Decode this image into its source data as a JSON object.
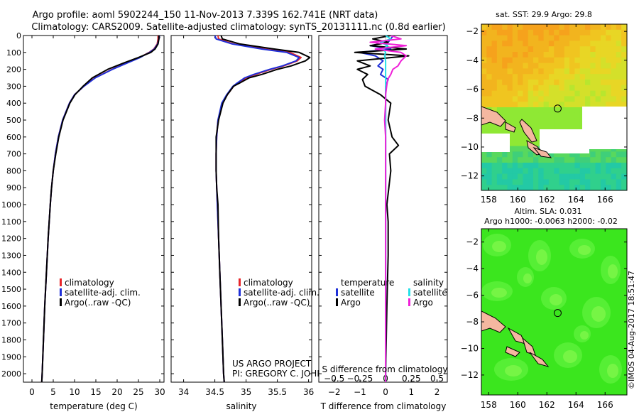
{
  "figure": {
    "title_line1": "Argo profile: aoml 5902244_150 11-Nov-2013 7.339S 162.741E (NRT data)",
    "title_line2": "Climatology: CARS2009. Satellite-adjusted climatology: synTS_20131111.nc (0.8d earlier)",
    "project_line1": "US ARGO PROJECT",
    "project_line2": "PI: GREGORY C. JOHNSON",
    "credit": "©IMOS 04-Aug-2017 18:51:47"
  },
  "colors": {
    "climatology": "#e8262a",
    "satellite": "#1f30d8",
    "argo": "#000000",
    "salinity_satellite": "#26e0e8",
    "salinity_argo": "#f020d8"
  },
  "chart_data": [
    {
      "id": "temperature",
      "type": "line",
      "xlabel": "temperature (deg C)",
      "xticks": [
        "0",
        "5",
        "10",
        "15",
        "20",
        "25",
        "30"
      ],
      "xlim": [
        -2,
        31
      ],
      "ylim": [
        0,
        2050
      ],
      "yticks": [
        "0",
        "100",
        "200",
        "300",
        "400",
        "500",
        "600",
        "700",
        "800",
        "900",
        "1000",
        "1100",
        "1200",
        "1300",
        "1400",
        "1500",
        "1600",
        "1700",
        "1800",
        "1900",
        "2000"
      ],
      "legend": [
        "climatology",
        "satellite-adj. clim.",
        "Argo(..raw -QC)"
      ],
      "depth": [
        0,
        20,
        50,
        80,
        100,
        130,
        160,
        200,
        250,
        300,
        350,
        400,
        500,
        600,
        700,
        800,
        900,
        1000,
        1200,
        1400,
        1600,
        1800,
        2000,
        2050
      ],
      "series": [
        {
          "name": "climatology",
          "values": [
            29.6,
            29.6,
            29.4,
            28.6,
            27.5,
            25.3,
            22.5,
            18.8,
            14.8,
            12.2,
            10.0,
            8.8,
            7.2,
            6.2,
            5.5,
            5.0,
            4.6,
            4.3,
            3.8,
            3.4,
            3.0,
            2.7,
            2.4,
            2.3
          ]
        },
        {
          "name": "satellite-adj. clim.",
          "values": [
            29.9,
            29.8,
            29.5,
            28.7,
            27.6,
            25.4,
            22.6,
            18.9,
            14.9,
            12.2,
            10.0,
            8.8,
            7.2,
            6.2,
            5.5,
            5.0,
            4.6,
            4.3,
            3.8,
            3.4,
            3.0,
            2.7,
            2.4,
            2.3
          ]
        },
        {
          "name": "Argo(..raw -QC)",
          "values": [
            29.8,
            29.8,
            29.6,
            28.9,
            27.9,
            25.0,
            21.8,
            17.8,
            14.2,
            12.0,
            10.1,
            8.9,
            7.3,
            6.3,
            5.6,
            5.0,
            4.6,
            4.3,
            3.8,
            3.4,
            3.0,
            2.7,
            2.4,
            2.3
          ]
        }
      ]
    },
    {
      "id": "salinity",
      "type": "line",
      "xlabel": "salinity",
      "xticks": [
        "34",
        "34.5",
        "35",
        "35.5",
        "36"
      ],
      "xlim": [
        33.8,
        36.05
      ],
      "ylim": [
        0,
        2050
      ],
      "legend": [
        "climatology",
        "satellite-adj. clim.",
        "Argo(..raw -QC)"
      ],
      "depth": [
        0,
        20,
        50,
        80,
        100,
        130,
        150,
        180,
        200,
        230,
        250,
        280,
        300,
        330,
        350,
        400,
        500,
        600,
        700,
        800,
        900,
        1000,
        1200,
        1400,
        1600,
        1800,
        2000,
        2050
      ],
      "series": [
        {
          "name": "climatology",
          "values": [
            34.55,
            34.56,
            34.8,
            35.3,
            35.7,
            35.88,
            35.82,
            35.6,
            35.4,
            35.15,
            35.0,
            34.88,
            34.8,
            34.74,
            34.7,
            34.62,
            34.55,
            34.53,
            34.52,
            34.52,
            34.53,
            34.54,
            34.56,
            34.58,
            34.6,
            34.62,
            34.64,
            34.65
          ]
        },
        {
          "name": "satellite-adj. clim.",
          "values": [
            34.5,
            34.52,
            34.78,
            35.25,
            35.65,
            35.85,
            35.8,
            35.58,
            35.38,
            35.12,
            34.98,
            34.86,
            34.79,
            34.73,
            34.69,
            34.61,
            34.55,
            34.53,
            34.52,
            34.52,
            34.53,
            34.54,
            34.56,
            34.58,
            34.6,
            34.62,
            34.64,
            34.65
          ]
        },
        {
          "name": "Argo(..raw -QC)",
          "values": [
            34.6,
            34.62,
            34.9,
            35.45,
            35.85,
            36.02,
            35.95,
            35.72,
            35.5,
            35.25,
            35.05,
            34.9,
            34.8,
            34.74,
            34.7,
            34.63,
            34.56,
            34.52,
            34.52,
            34.52,
            34.53,
            34.55,
            34.56,
            34.58,
            34.6,
            34.62,
            34.64,
            34.65
          ]
        }
      ]
    },
    {
      "id": "difference",
      "type": "line",
      "xlabel": "T difference from climatology",
      "x2label": "S difference from climatology",
      "xticks": [
        "−2",
        "−1",
        "0",
        "1",
        "2"
      ],
      "x2ticks": [
        "−0.5",
        "−0.25",
        "0",
        "0.25",
        "0.5"
      ],
      "xlim": [
        -2.6,
        2.4
      ],
      "x2lim": [
        -0.65,
        0.6
      ],
      "ylim": [
        0,
        2050
      ],
      "legend_temperature": [
        "temperature",
        "satellite",
        "Argo"
      ],
      "legend_salinity": [
        "salinity",
        "satellite",
        "Argo"
      ],
      "depth": [
        0,
        20,
        40,
        60,
        80,
        100,
        120,
        150,
        180,
        200,
        230,
        260,
        300,
        350,
        400,
        500,
        600,
        650,
        700,
        800,
        1000,
        1100,
        1300,
        1600,
        2000,
        2050
      ],
      "series": [
        {
          "name": "temperature satellite",
          "values": [
            0.3,
            0.2,
            0.1,
            -0.6,
            0.2,
            -1.0,
            -0.4,
            -0.1,
            -0.3,
            -0.1,
            -0.2,
            0.1,
            0.0,
            0.0,
            0.0,
            0.0,
            0.0,
            0.0,
            0.0,
            0.0,
            0.0,
            0.0,
            0.0,
            0.0,
            0.0,
            0.0
          ]
        },
        {
          "name": "temperature Argo",
          "values": [
            0.2,
            -0.5,
            0.1,
            -0.6,
            0.8,
            -1.2,
            0.9,
            -1.1,
            -0.6,
            -1.1,
            -0.7,
            -0.9,
            -0.8,
            -0.2,
            0.2,
            0.1,
            0.25,
            0.5,
            0.15,
            0.2,
            0.05,
            0.1,
            0.1,
            0.05,
            0.0,
            0.0
          ]
        },
        {
          "name": "salinity satellite",
          "values": [
            0.0,
            0.05,
            -0.05,
            0.02,
            -0.02,
            0.0,
            -0.01,
            0.0,
            0.0,
            0.0,
            0.0,
            0.0,
            0.0,
            0.0,
            0.0,
            0.0,
            0.0,
            0.0,
            0.0,
            0.0,
            0.0,
            0.0,
            0.0,
            0.0,
            0.0,
            0.0
          ]
        },
        {
          "name": "salinity Argo",
          "values": [
            0.05,
            0.15,
            -0.15,
            0.2,
            -0.1,
            0.15,
            0.2,
            0.15,
            0.12,
            0.07,
            0.05,
            0.02,
            0.01,
            0.0,
            0.0,
            -0.01,
            0.0,
            0.0,
            0.0,
            0.0,
            0.0,
            0.0,
            0.0,
            0.0,
            0.0,
            0.0
          ]
        }
      ]
    },
    {
      "id": "sst_map",
      "type": "heatmap",
      "title": "sat. SST: 29.9 Argo: 29.8",
      "xticks": [
        "158",
        "160",
        "162",
        "164",
        "166"
      ],
      "yticks": [
        "−2",
        "−4",
        "−6",
        "−8",
        "−10",
        "−12"
      ],
      "xlim": [
        157.5,
        167.5
      ],
      "ylim": [
        -13.0,
        -1.5
      ],
      "marker": {
        "lon": 162.741,
        "lat": -7.339
      }
    },
    {
      "id": "sla_map",
      "type": "heatmap",
      "title": "Altim. SLA: 0.031",
      "subtitle": "Argo h1000: -0.0063 h2000: -0.02",
      "xticks": [
        "158",
        "160",
        "162",
        "164",
        "166"
      ],
      "yticks": [
        "−2",
        "−4",
        "−6",
        "−8",
        "−10",
        "−12"
      ],
      "xlim": [
        157.5,
        167.5
      ],
      "ylim": [
        -13.5,
        -1.0
      ],
      "marker": {
        "lon": 162.741,
        "lat": -7.339
      }
    }
  ]
}
